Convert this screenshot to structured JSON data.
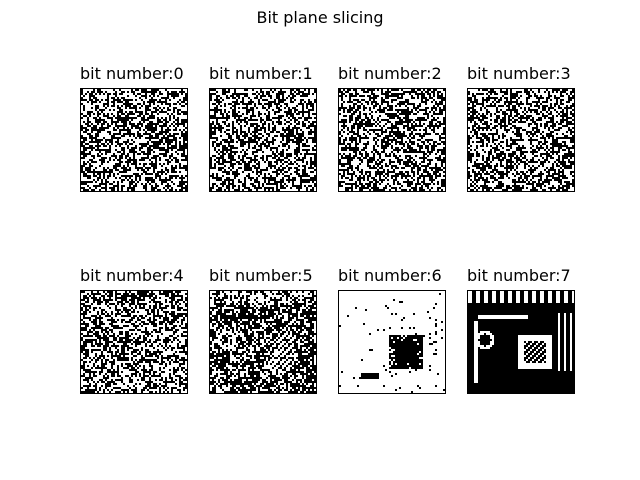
{
  "figure": {
    "title": "Bit plane slicing",
    "panels": [
      {
        "label": "bit number:0",
        "bit": 0
      },
      {
        "label": "bit number:1",
        "bit": 1
      },
      {
        "label": "bit number:2",
        "bit": 2
      },
      {
        "label": "bit number:3",
        "bit": 3
      },
      {
        "label": "bit number:4",
        "bit": 4
      },
      {
        "label": "bit number:5",
        "bit": 5
      },
      {
        "label": "bit number:6",
        "bit": 6
      },
      {
        "label": "bit number:7",
        "bit": 7
      }
    ]
  },
  "colors": {
    "on": "#ffffff",
    "off": "#000000"
  }
}
